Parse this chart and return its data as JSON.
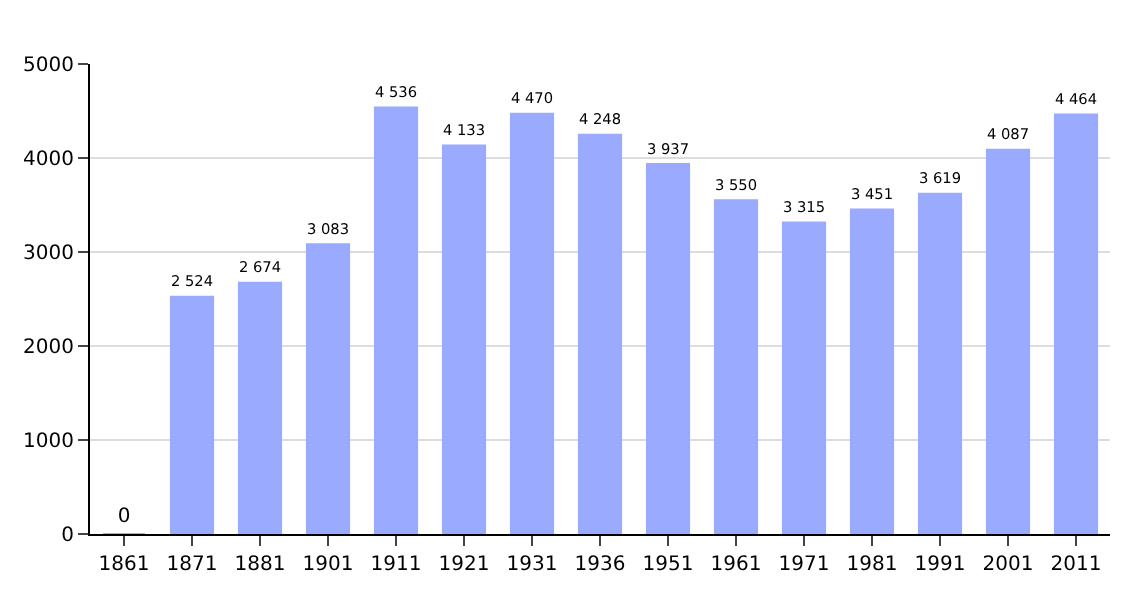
{
  "chart_data": {
    "type": "bar",
    "categories": [
      "1861",
      "1871",
      "1881",
      "1901",
      "1911",
      "1921",
      "1931",
      "1936",
      "1951",
      "1961",
      "1971",
      "1981",
      "1991",
      "2001",
      "2011"
    ],
    "values": [
      0,
      2524,
      2674,
      3083,
      4536,
      4133,
      4470,
      4248,
      3937,
      3550,
      3315,
      3451,
      3619,
      4087,
      4464
    ],
    "value_labels": [
      "0",
      "2 524",
      "2 674",
      "3 083",
      "4 536",
      "4 133",
      "4 470",
      "4 248",
      "3 937",
      "3 550",
      "3 315",
      "3 451",
      "3 619",
      "4 087",
      "4 464"
    ],
    "color": "#99aaff",
    "ylim": [
      0,
      5000
    ],
    "yticks": [
      0,
      1000,
      2000,
      3000,
      4000,
      5000
    ],
    "grid": "y"
  }
}
